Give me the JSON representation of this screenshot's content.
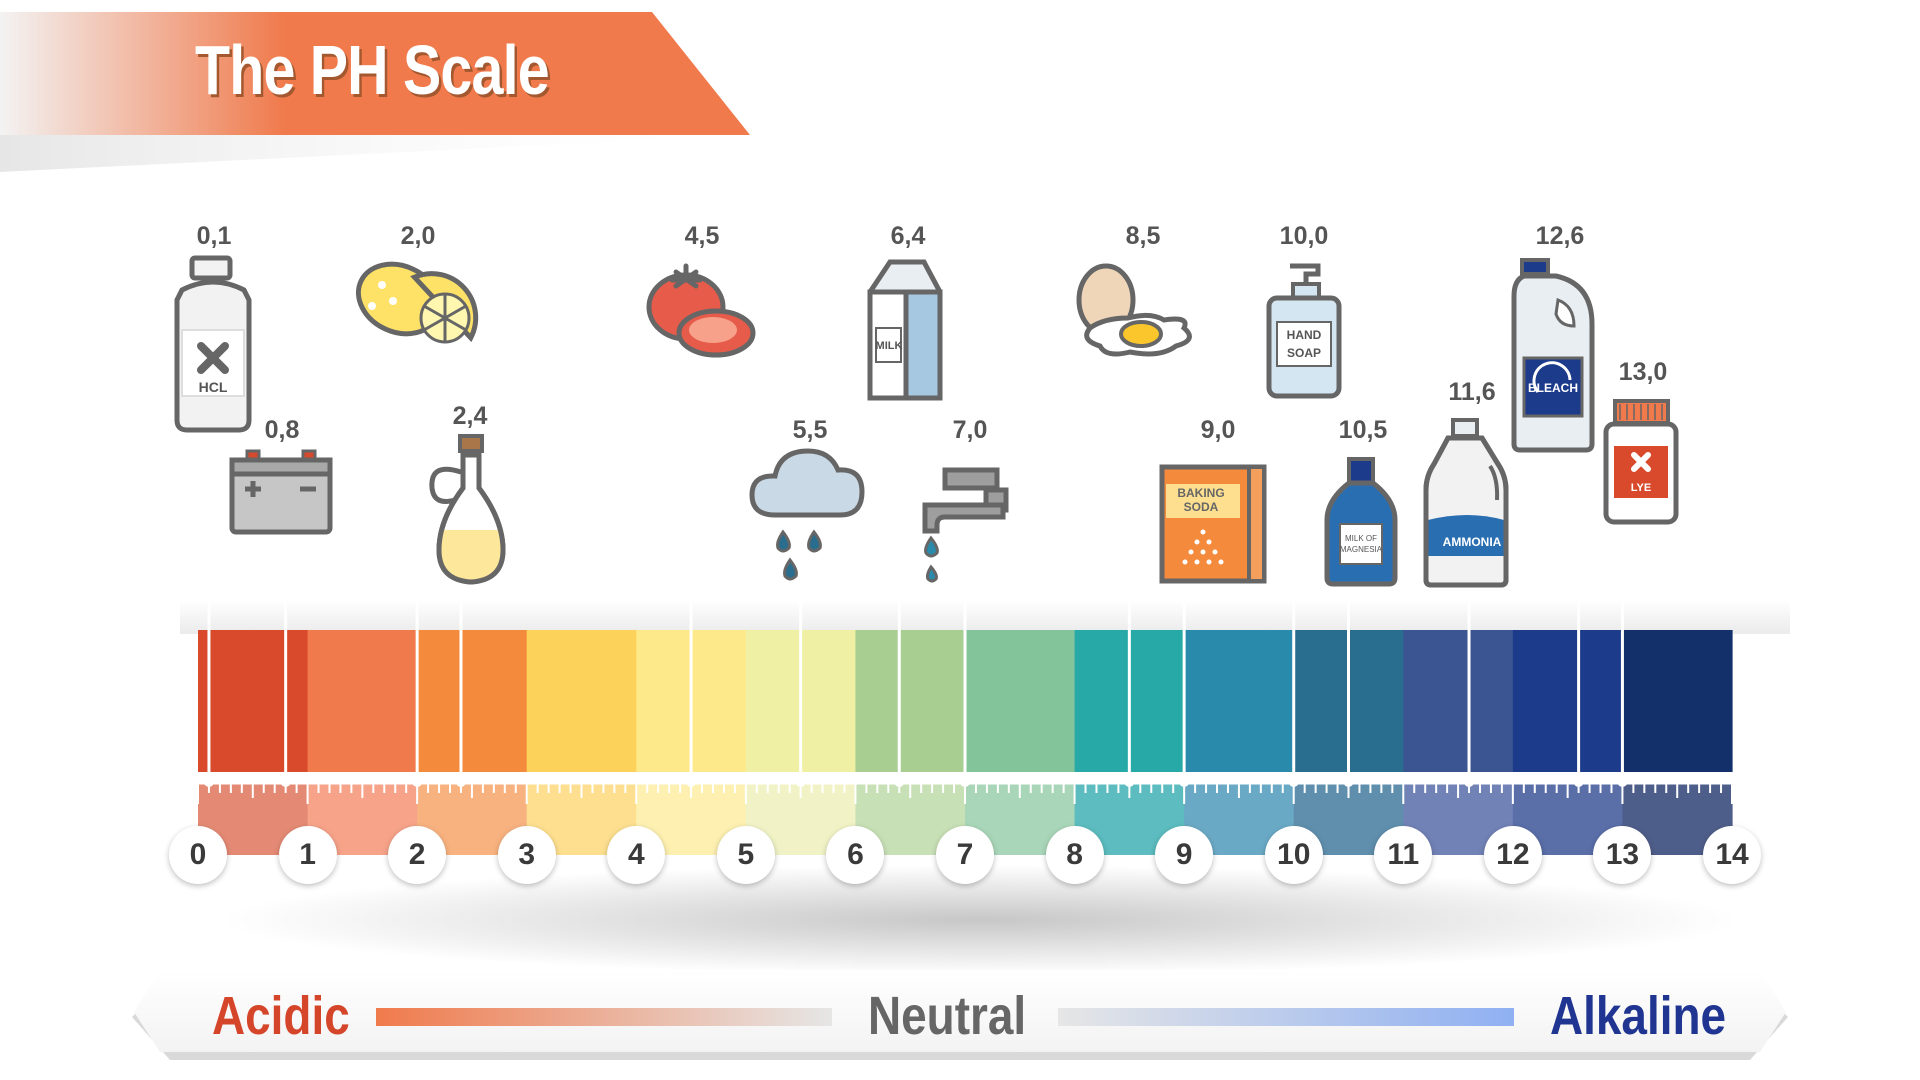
{
  "title": "The PH Scale",
  "colors": {
    "title_banner": "#f07a4c",
    "acidic": "#d5452a",
    "neutral": "#666666",
    "alkaline": "#1f3591",
    "scale_segments": [
      "#d84a2b",
      "#f07a4c",
      "#f48b3c",
      "#fdd25a",
      "#fde98a",
      "#eff0a4",
      "#a9ce91",
      "#84c49a",
      "#27a9a8",
      "#2a8aab",
      "#2a6e8f",
      "#3b5592",
      "#1d3b8b",
      "#14306a"
    ],
    "ruler_segments": [
      "#e48a74",
      "#f6a389",
      "#f8b27f",
      "#fddf8f",
      "#fdf0b0",
      "#f1f3c6",
      "#c8e0b6",
      "#a9d6b8",
      "#5cbcbf",
      "#6aa9c5",
      "#5f8fad",
      "#7182b6",
      "#5a6ea8",
      "#4e5e8a"
    ]
  },
  "scale_ticks": [
    "0",
    "1",
    "2",
    "3",
    "4",
    "5",
    "6",
    "7",
    "8",
    "9",
    "10",
    "11",
    "12",
    "13",
    "14"
  ],
  "items": [
    {
      "name": "HCL",
      "value": "0,1",
      "ph": 0.1,
      "icon": "hcl-bottle-icon"
    },
    {
      "name": "",
      "value": "0,8",
      "ph": 0.8,
      "icon": "battery-icon"
    },
    {
      "name": "",
      "value": "2,0",
      "ph": 2.0,
      "icon": "lemon-icon"
    },
    {
      "name": "",
      "value": "2,4",
      "ph": 2.4,
      "icon": "vinegar-icon"
    },
    {
      "name": "",
      "value": "4,5",
      "ph": 4.5,
      "icon": "tomato-icon"
    },
    {
      "name": "",
      "value": "5,5",
      "ph": 5.5,
      "icon": "rain-cloud-icon"
    },
    {
      "name": "MILK",
      "value": "6,4",
      "ph": 6.4,
      "icon": "milk-carton-icon"
    },
    {
      "name": "",
      "value": "7,0",
      "ph": 7.0,
      "icon": "water-tap-icon"
    },
    {
      "name": "",
      "value": "8,5",
      "ph": 8.5,
      "icon": "egg-icon"
    },
    {
      "name": "BAKING SODA",
      "value": "9,0",
      "ph": 9.0,
      "icon": "baking-soda-icon"
    },
    {
      "name": "HAND SOAP",
      "value": "10,0",
      "ph": 10.0,
      "icon": "hand-soap-icon"
    },
    {
      "name": "MILK OF MAGNESIA",
      "value": "10,5",
      "ph": 10.5,
      "icon": "magnesia-bottle-icon"
    },
    {
      "name": "AMMONIA",
      "value": "11,6",
      "ph": 11.6,
      "icon": "ammonia-bottle-icon"
    },
    {
      "name": "BLEACH",
      "value": "12,6",
      "ph": 12.6,
      "icon": "bleach-bottle-icon"
    },
    {
      "name": "LYE",
      "value": "13,0",
      "ph": 13.0,
      "icon": "lye-jar-icon"
    }
  ],
  "legend": {
    "acidic": "Acidic",
    "neutral": "Neutral",
    "alkaline": "Alkaline"
  }
}
